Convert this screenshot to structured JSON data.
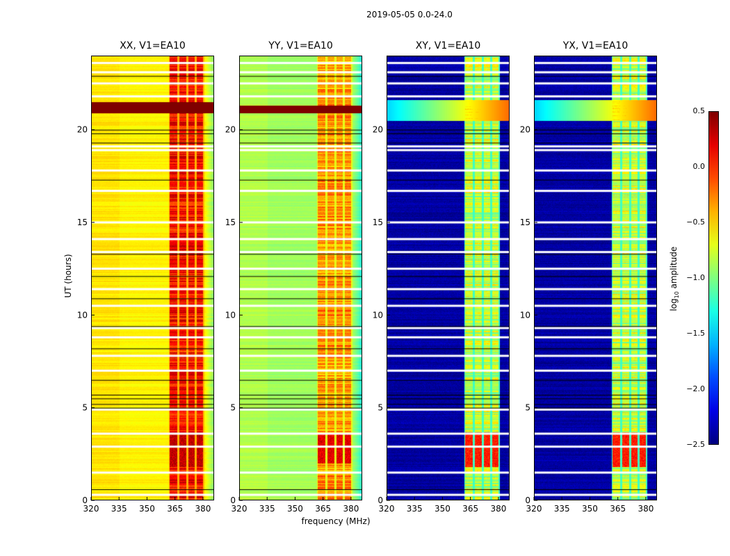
{
  "suptitle": "2019-05-05 0.0-24.0",
  "ylabel": "UT (hours)",
  "xlabel": "frequency (MHz)",
  "colorbar": {
    "label": "log10 amplitude",
    "label_main": "log",
    "label_sub": "10",
    "label_rest": " amplitude",
    "ticks": [
      "0.5",
      "0.0",
      "−0.5",
      "−1.0",
      "−1.5",
      "−2.0",
      "−2.5"
    ],
    "tick_values": [
      0.5,
      0.0,
      -0.5,
      -1.0,
      -1.5,
      -2.0,
      -2.5
    ],
    "range": [
      -2.5,
      0.5
    ],
    "colormap": "jet"
  },
  "chart_data": [
    {
      "type": "heatmap",
      "title": "XX, V1=EA10",
      "xlim": [
        320,
        386
      ],
      "ylim": [
        0,
        24
      ],
      "xticks": [
        320,
        335,
        350,
        365,
        380
      ],
      "yticks": [
        0,
        5,
        10,
        15,
        20
      ],
      "baseline": -0.6,
      "band_level": 0.1,
      "band_peak_hours": [
        1.8,
        3.7
      ],
      "band_peak_level": 0.45,
      "flare_hours": [
        20.9,
        21.5
      ],
      "flare_level": 0.5
    },
    {
      "type": "heatmap",
      "title": "YY, V1=EA10",
      "xlim": [
        320,
        386
      ],
      "ylim": [
        0,
        24
      ],
      "xticks": [
        320,
        335,
        350,
        365,
        380
      ],
      "yticks": [
        0,
        5,
        10,
        15,
        20
      ],
      "baseline": -0.9,
      "band_level": -0.3,
      "band_peak_hours": [
        2.0,
        3.6
      ],
      "band_peak_level": 0.35,
      "flare_hours": [
        20.9,
        21.3
      ],
      "flare_level": 0.5
    },
    {
      "type": "heatmap",
      "title": "XY, V1=EA10",
      "xlim": [
        320,
        386
      ],
      "ylim": [
        0,
        24
      ],
      "xticks": [
        320,
        335,
        350,
        365,
        380
      ],
      "yticks": [
        0,
        5,
        10,
        15,
        20
      ],
      "baseline": -2.4,
      "band_level": -0.8,
      "band_peak_hours": [
        1.8,
        3.7
      ],
      "band_peak_level": 0.2,
      "flare_hours": [
        20.5,
        21.6
      ],
      "flare_level": -1.5
    },
    {
      "type": "heatmap",
      "title": "YX, V1=EA10",
      "xlim": [
        320,
        386
      ],
      "ylim": [
        0,
        24
      ],
      "xticks": [
        320,
        335,
        350,
        365,
        380
      ],
      "yticks": [
        0,
        5,
        10,
        15,
        20
      ],
      "baseline": -2.4,
      "band_level": -0.8,
      "band_peak_hours": [
        1.8,
        3.7
      ],
      "band_peak_level": 0.2,
      "flare_hours": [
        20.5,
        21.6
      ],
      "flare_level": -1.5
    }
  ],
  "rfi_subbands_mhz": [
    [
      362,
      366
    ],
    [
      367,
      371
    ],
    [
      372,
      375.5
    ],
    [
      376.5,
      380
    ]
  ],
  "flagged_hours": [
    0.3,
    1.5,
    2.9,
    3.6,
    4.9,
    7.0,
    7.8,
    8.8,
    9.3,
    10.5,
    11.4,
    12.5,
    13.4,
    14.1,
    15.0,
    16.7,
    17.8,
    18.9,
    19.1,
    21.8,
    22.5,
    23.1,
    23.6
  ],
  "black_line_hours": [
    0.6,
    5.0,
    5.2,
    5.5,
    5.7,
    6.5,
    8.2,
    9.4,
    10.9,
    12.1,
    13.3,
    17.3,
    19.3,
    19.8,
    20.0,
    22.9
  ]
}
